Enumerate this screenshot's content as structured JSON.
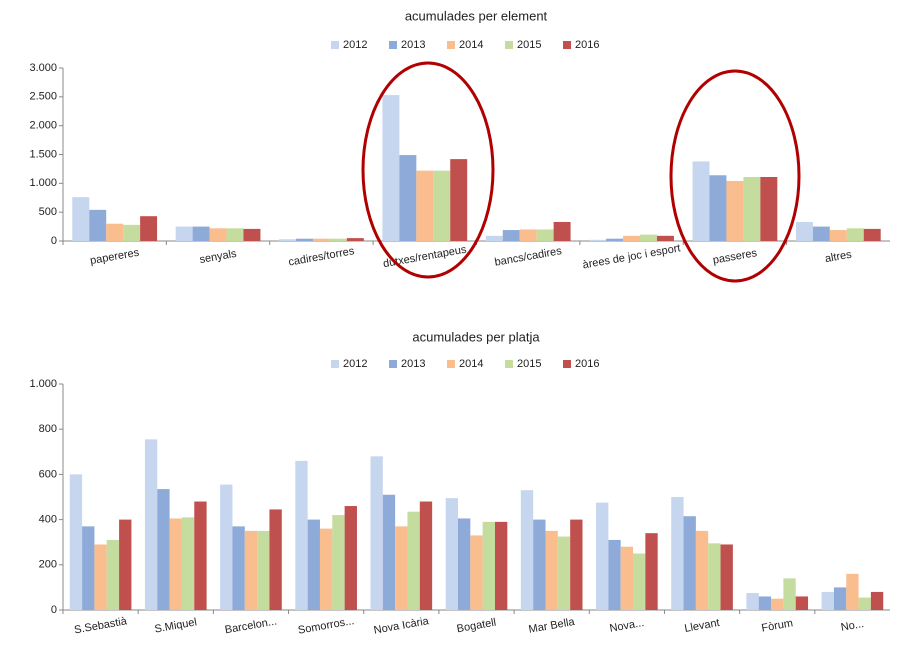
{
  "chart_data": [
    {
      "type": "bar",
      "title": "acumulades per element",
      "categories": [
        "papereres",
        "senyals",
        "cadires/torres",
        "dutxes/rentapeus",
        "bancs/cadires",
        "àrees de joc i esport",
        "passeres",
        "altres"
      ],
      "series": [
        {
          "name": "2012",
          "color": "#c5d6ee",
          "values": [
            760,
            250,
            30,
            2530,
            90,
            20,
            1380,
            330
          ]
        },
        {
          "name": "2013",
          "color": "#8eaad8",
          "values": [
            540,
            250,
            40,
            1490,
            190,
            40,
            1140,
            250
          ]
        },
        {
          "name": "2014",
          "color": "#f9bd8e",
          "values": [
            300,
            220,
            40,
            1220,
            200,
            90,
            1040,
            190
          ]
        },
        {
          "name": "2015",
          "color": "#c4dc9e",
          "values": [
            280,
            220,
            40,
            1220,
            200,
            110,
            1110,
            220
          ]
        },
        {
          "name": "2016",
          "color": "#c0504d",
          "values": [
            430,
            210,
            50,
            1420,
            330,
            90,
            1110,
            210
          ]
        }
      ],
      "ylim": [
        0,
        3000
      ],
      "yticks": [
        0,
        500,
        {
          "value": 1000,
          "label": "1.000"
        },
        {
          "value": 1500,
          "label": "1.500"
        },
        {
          "value": 2000,
          "label": "2.000"
        },
        {
          "value": 2500,
          "label": "2.500"
        },
        {
          "value": 3000,
          "label": "3.000"
        }
      ],
      "grid": false,
      "legend": "top"
    },
    {
      "type": "bar",
      "title": "acumulades per platja",
      "categories": [
        "S.Sebastià",
        "S.Miquel",
        "Barcelon...",
        "Somorros...",
        "Nova Icària",
        "Bogatell",
        "Mar Bella",
        "Nova...",
        "Llevant",
        "Fòrum",
        "No..."
      ],
      "series": [
        {
          "name": "2012",
          "color": "#c5d6ee",
          "values": [
            600,
            755,
            555,
            660,
            680,
            495,
            530,
            475,
            500,
            75,
            80
          ]
        },
        {
          "name": "2013",
          "color": "#8eaad8",
          "values": [
            370,
            535,
            370,
            400,
            510,
            405,
            400,
            310,
            415,
            60,
            100
          ]
        },
        {
          "name": "2014",
          "color": "#f9bd8e",
          "values": [
            290,
            405,
            350,
            360,
            370,
            330,
            350,
            280,
            350,
            50,
            160
          ]
        },
        {
          "name": "2015",
          "color": "#c4dc9e",
          "values": [
            310,
            410,
            350,
            420,
            435,
            390,
            325,
            250,
            295,
            140,
            55
          ]
        },
        {
          "name": "2016",
          "color": "#c0504d",
          "values": [
            400,
            480,
            445,
            460,
            480,
            390,
            400,
            340,
            290,
            60,
            80
          ]
        }
      ],
      "ylim": [
        0,
        1000
      ],
      "yticks": [
        0,
        200,
        400,
        600,
        800,
        {
          "value": 1000,
          "label": "1.000"
        }
      ],
      "grid": false,
      "legend": "top"
    }
  ]
}
